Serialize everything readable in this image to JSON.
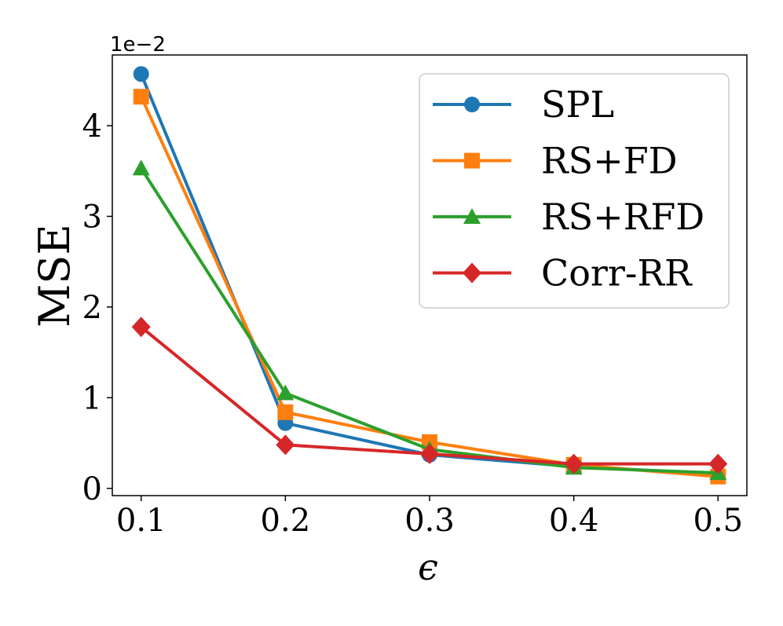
{
  "chart_data": {
    "type": "line",
    "title": "",
    "xlabel": "ϵ",
    "ylabel": "MSE",
    "y_offset_label": "1e−2",
    "x": [
      0.1,
      0.2,
      0.3,
      0.4,
      0.5
    ],
    "x_tick_labels": [
      "0.1",
      "0.2",
      "0.3",
      "0.4",
      "0.5"
    ],
    "y_ticks": [
      0,
      1,
      2,
      3,
      4
    ],
    "y_tick_labels": [
      "0",
      "1",
      "2",
      "3",
      "4"
    ],
    "xlim": [
      0.08,
      0.52
    ],
    "ylim": [
      -0.08,
      4.78
    ],
    "grid": false,
    "legend_position": "top-right",
    "series": [
      {
        "name": "SPL",
        "color": "#1f77b4",
        "marker": "circle",
        "values": [
          4.57,
          0.72,
          0.37,
          0.24,
          0.16
        ]
      },
      {
        "name": "RS+FD",
        "color": "#ff7f0e",
        "marker": "square",
        "values": [
          4.32,
          0.84,
          0.51,
          0.26,
          0.13
        ]
      },
      {
        "name": "RS+RFD",
        "color": "#2ca02c",
        "marker": "triangle",
        "values": [
          3.53,
          1.05,
          0.43,
          0.23,
          0.17
        ]
      },
      {
        "name": "Corr-RR",
        "color": "#d62728",
        "marker": "diamond",
        "values": [
          1.78,
          0.48,
          0.38,
          0.27,
          0.27
        ]
      }
    ]
  }
}
